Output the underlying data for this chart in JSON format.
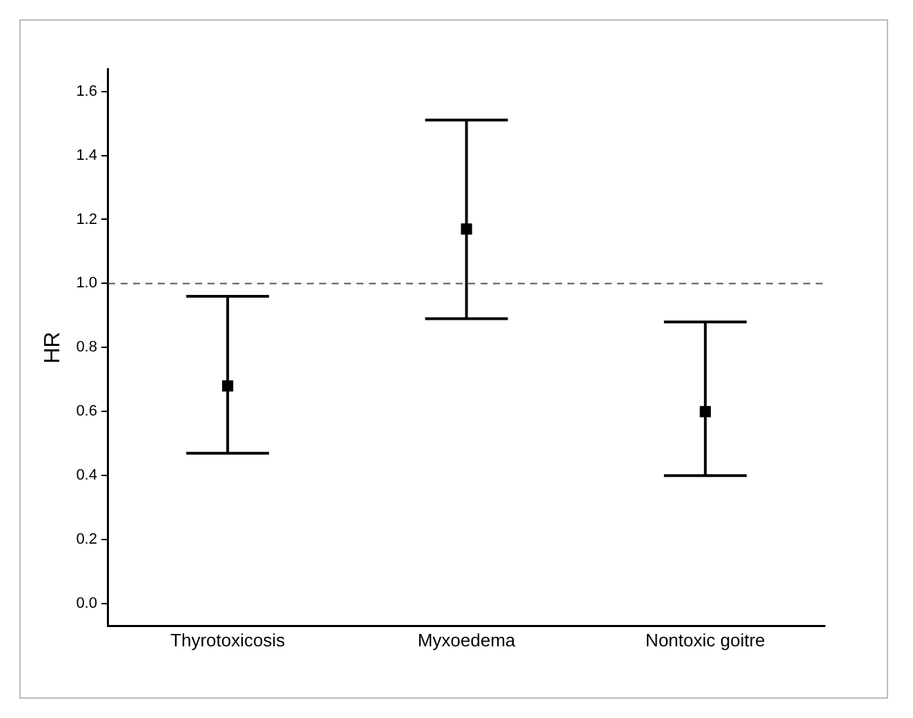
{
  "chart_data": {
    "type": "scatter",
    "ylabel": "HR",
    "categories": [
      "Thyrotoxicosis",
      "Myxoedema",
      "Nontoxic goitre"
    ],
    "color": "#000000",
    "values": [
      0.68,
      1.17,
      0.6
    ],
    "errors": [
      [
        0.47,
        0.96
      ],
      [
        0.89,
        1.51
      ],
      [
        0.4,
        0.88
      ]
    ],
    "ylim": [
      -0.07,
      1.67
    ],
    "yticks": [
      {
        "value": 0,
        "label": "0.0"
      },
      0.2,
      0.4,
      0.6,
      0.8,
      {
        "value": 1,
        "label": "1.0"
      },
      1.2,
      1.4,
      1.6
    ],
    "ref_lines": [
      {
        "axis": "y",
        "value": 1,
        "color": "#555555",
        "line_style": "dashed"
      }
    ],
    "marker": "square",
    "grid": false,
    "legend": false
  }
}
